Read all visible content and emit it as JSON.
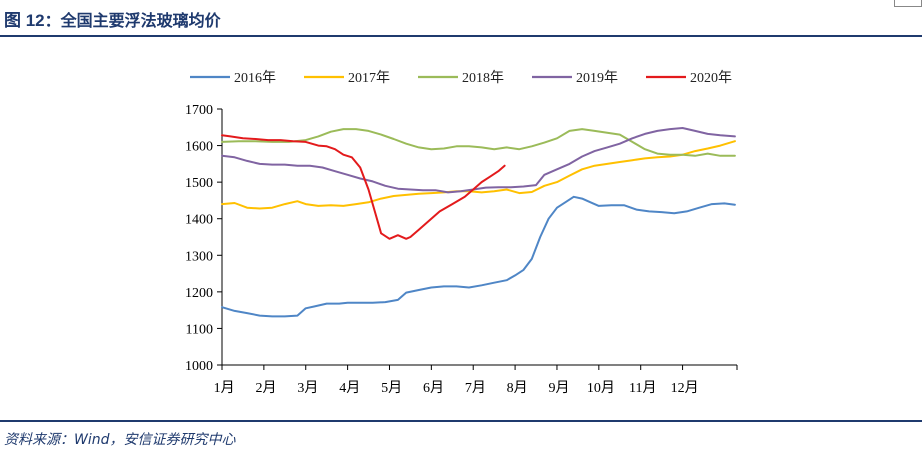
{
  "header": {
    "figure_number": "图 12",
    "separator": "：",
    "title": "全国主要浮法玻璃均价"
  },
  "footer": {
    "source": "资料来源：Wind，安信证券研究中心"
  },
  "chart_data": {
    "type": "line",
    "title": "",
    "xlabel": "",
    "ylabel": "",
    "ylim": [
      1000,
      1700
    ],
    "yticks": [
      1000,
      1100,
      1200,
      1300,
      1400,
      1500,
      1600,
      1700
    ],
    "xlim": [
      1,
      13.3
    ],
    "x_tick_labels": [
      "1月",
      "2月",
      "3月",
      "4月",
      "5月",
      "6月",
      "7月",
      "8月",
      "9月",
      "10月",
      "11月",
      "12月"
    ],
    "x_tick_positions": [
      1,
      2,
      3,
      4,
      5,
      6,
      7,
      8,
      9,
      10,
      11,
      12
    ],
    "x_unit": "month",
    "grid": false,
    "legend_position": "top",
    "series": [
      {
        "name": "2016年",
        "color": "#4f86c6",
        "x": [
          1.0,
          1.3,
          1.6,
          1.9,
          2.2,
          2.5,
          2.8,
          3.0,
          3.2,
          3.5,
          3.8,
          4.0,
          4.3,
          4.6,
          4.9,
          5.2,
          5.4,
          5.7,
          6.0,
          6.3,
          6.6,
          6.9,
          7.2,
          7.5,
          7.8,
          8.0,
          8.2,
          8.4,
          8.6,
          8.8,
          9.0,
          9.2,
          9.4,
          9.6,
          9.8,
          10.0,
          10.3,
          10.6,
          10.9,
          11.2,
          11.5,
          11.8,
          12.1,
          12.4,
          12.7,
          13.0,
          13.25
        ],
        "y": [
          1158,
          1148,
          1142,
          1135,
          1133,
          1133,
          1135,
          1155,
          1160,
          1168,
          1168,
          1170,
          1170,
          1170,
          1172,
          1178,
          1198,
          1205,
          1212,
          1215,
          1215,
          1212,
          1218,
          1225,
          1232,
          1245,
          1260,
          1290,
          1350,
          1400,
          1430,
          1445,
          1460,
          1455,
          1445,
          1435,
          1437,
          1437,
          1425,
          1420,
          1418,
          1415,
          1420,
          1430,
          1440,
          1442,
          1438
        ]
      },
      {
        "name": "2017年",
        "color": "#ffc000",
        "x": [
          1.0,
          1.3,
          1.6,
          1.9,
          2.2,
          2.5,
          2.8,
          3.0,
          3.3,
          3.6,
          3.9,
          4.2,
          4.5,
          4.8,
          5.1,
          5.4,
          5.7,
          6.0,
          6.3,
          6.6,
          6.9,
          7.2,
          7.5,
          7.8,
          8.1,
          8.4,
          8.7,
          9.0,
          9.3,
          9.6,
          9.9,
          10.2,
          10.5,
          10.8,
          11.1,
          11.4,
          11.7,
          12.0,
          12.3,
          12.6,
          12.9,
          13.25
        ],
        "y": [
          1440,
          1443,
          1430,
          1428,
          1430,
          1440,
          1448,
          1440,
          1435,
          1437,
          1435,
          1440,
          1445,
          1455,
          1462,
          1465,
          1468,
          1470,
          1472,
          1475,
          1475,
          1472,
          1475,
          1480,
          1470,
          1473,
          1490,
          1500,
          1518,
          1535,
          1545,
          1550,
          1555,
          1560,
          1565,
          1568,
          1570,
          1575,
          1585,
          1592,
          1600,
          1612
        ]
      },
      {
        "name": "2018年",
        "color": "#9bbb59",
        "x": [
          1.0,
          1.4,
          1.8,
          2.2,
          2.6,
          3.0,
          3.3,
          3.6,
          3.9,
          4.2,
          4.5,
          4.8,
          5.1,
          5.4,
          5.7,
          6.0,
          6.3,
          6.6,
          6.9,
          7.2,
          7.5,
          7.8,
          8.1,
          8.4,
          8.7,
          9.0,
          9.3,
          9.6,
          9.9,
          10.2,
          10.5,
          10.8,
          11.1,
          11.4,
          11.7,
          12.0,
          12.3,
          12.6,
          12.9,
          13.25
        ],
        "y": [
          1610,
          1612,
          1612,
          1610,
          1610,
          1615,
          1625,
          1638,
          1645,
          1645,
          1640,
          1630,
          1618,
          1605,
          1595,
          1590,
          1592,
          1598,
          1598,
          1595,
          1590,
          1595,
          1590,
          1598,
          1608,
          1620,
          1640,
          1645,
          1640,
          1635,
          1630,
          1610,
          1590,
          1578,
          1575,
          1575,
          1572,
          1578,
          1572,
          1572
        ]
      },
      {
        "name": "2019年",
        "color": "#8064a2",
        "x": [
          1.0,
          1.3,
          1.6,
          1.9,
          2.2,
          2.5,
          2.8,
          3.1,
          3.4,
          3.7,
          4.0,
          4.3,
          4.6,
          4.9,
          5.2,
          5.5,
          5.8,
          6.1,
          6.4,
          6.7,
          7.0,
          7.3,
          7.6,
          7.9,
          8.2,
          8.5,
          8.7,
          9.0,
          9.3,
          9.6,
          9.9,
          10.2,
          10.5,
          10.8,
          11.1,
          11.4,
          11.7,
          12.0,
          12.3,
          12.6,
          12.9,
          13.25
        ],
        "y": [
          1572,
          1568,
          1558,
          1550,
          1548,
          1548,
          1545,
          1545,
          1540,
          1530,
          1520,
          1510,
          1502,
          1490,
          1482,
          1480,
          1478,
          1478,
          1472,
          1475,
          1480,
          1485,
          1486,
          1486,
          1488,
          1492,
          1520,
          1535,
          1550,
          1570,
          1585,
          1595,
          1605,
          1620,
          1632,
          1640,
          1645,
          1648,
          1640,
          1632,
          1628,
          1625
        ]
      },
      {
        "name": "2020年",
        "color": "#e31a1c",
        "x": [
          1.0,
          1.2,
          1.5,
          1.8,
          2.1,
          2.4,
          2.7,
          3.0,
          3.3,
          3.5,
          3.7,
          3.9,
          4.1,
          4.3,
          4.5,
          4.65,
          4.8,
          5.0,
          5.2,
          5.4,
          5.5,
          5.7,
          6.0,
          6.2,
          6.5,
          6.8,
          7.0,
          7.2,
          7.4,
          7.6,
          7.75
        ],
        "y": [
          1628,
          1625,
          1620,
          1618,
          1615,
          1615,
          1612,
          1610,
          1600,
          1598,
          1590,
          1575,
          1568,
          1540,
          1480,
          1420,
          1360,
          1345,
          1355,
          1345,
          1350,
          1370,
          1400,
          1420,
          1440,
          1460,
          1480,
          1500,
          1515,
          1530,
          1545
        ]
      }
    ]
  }
}
